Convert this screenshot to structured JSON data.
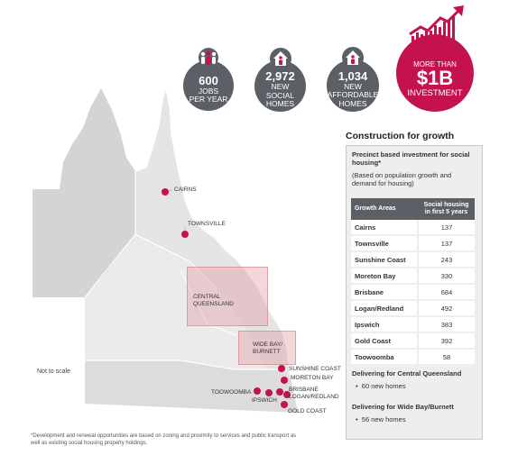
{
  "stats": [
    {
      "number": "600",
      "label_line1": "JOBS",
      "label_line2": "PER YEAR",
      "icon": "workers-icon"
    },
    {
      "number": "2,972",
      "label_line1": "NEW",
      "label_line2": "SOCIAL",
      "label_line3": "HOMES",
      "icon": "house-icon"
    },
    {
      "number": "1,034",
      "label_line1": "NEW",
      "label_line2": "AFFORDABLE",
      "label_line3": "HOMES",
      "icon": "house-icon"
    }
  ],
  "investment": {
    "prefix": "MORE THAN",
    "number": "$1B",
    "label": "INVESTMENT",
    "icon": "rising-chart-icon"
  },
  "colors": {
    "accent": "#c4124e",
    "dark": "#5b6066",
    "panel": "#eeeeee"
  },
  "map": {
    "cities": {
      "cairns": "CAIRNS",
      "townsville": "TOWNSVILLE",
      "toowoomba": "TOOWOOMBA",
      "ipswich": "IPSWICH",
      "sunshine_coast": "SUNSHINE COAST",
      "moreton_bay": "MORETON BAY",
      "brisbane_logan": "BRISBANE\nLOGAN/REDLAND",
      "gold_coast": "GOLD COAST"
    },
    "regions": {
      "central_qld": "CENTRAL\nQUEENSLAND",
      "wide_bay": "WIDE BAY/\nBURNETT"
    },
    "not_to_scale": "Not to scale"
  },
  "panel": {
    "title": "Construction for growth",
    "heading": "Precinct based investment for social housing*",
    "subheading": "(Based on population growth and demand for housing)",
    "col1": "Growth Areas",
    "col2": "Social housing in first 5 years",
    "rows": [
      {
        "area": "Cairns",
        "value": "137"
      },
      {
        "area": "Townsville",
        "value": "137"
      },
      {
        "area": "Sunshine Coast",
        "value": "243"
      },
      {
        "area": "Moreton Bay",
        "value": "330"
      },
      {
        "area": "Brisbane",
        "value": "684"
      },
      {
        "area": "Logan/Redland",
        "value": "492"
      },
      {
        "area": "Ipswich",
        "value": "383"
      },
      {
        "area": "Gold Coast",
        "value": "392"
      },
      {
        "area": "Toowoomba",
        "value": "58"
      }
    ],
    "central_heading": "Delivering for Central Queensland",
    "central_item": "60 new homes",
    "widebay_heading": "Delivering for Wide Bay/Burnett",
    "widebay_item": "56 new homes"
  },
  "footnote": "*Development and renewal opportunities are based on zoning and proximity to services and public transport as well as existing social housing property holdings."
}
